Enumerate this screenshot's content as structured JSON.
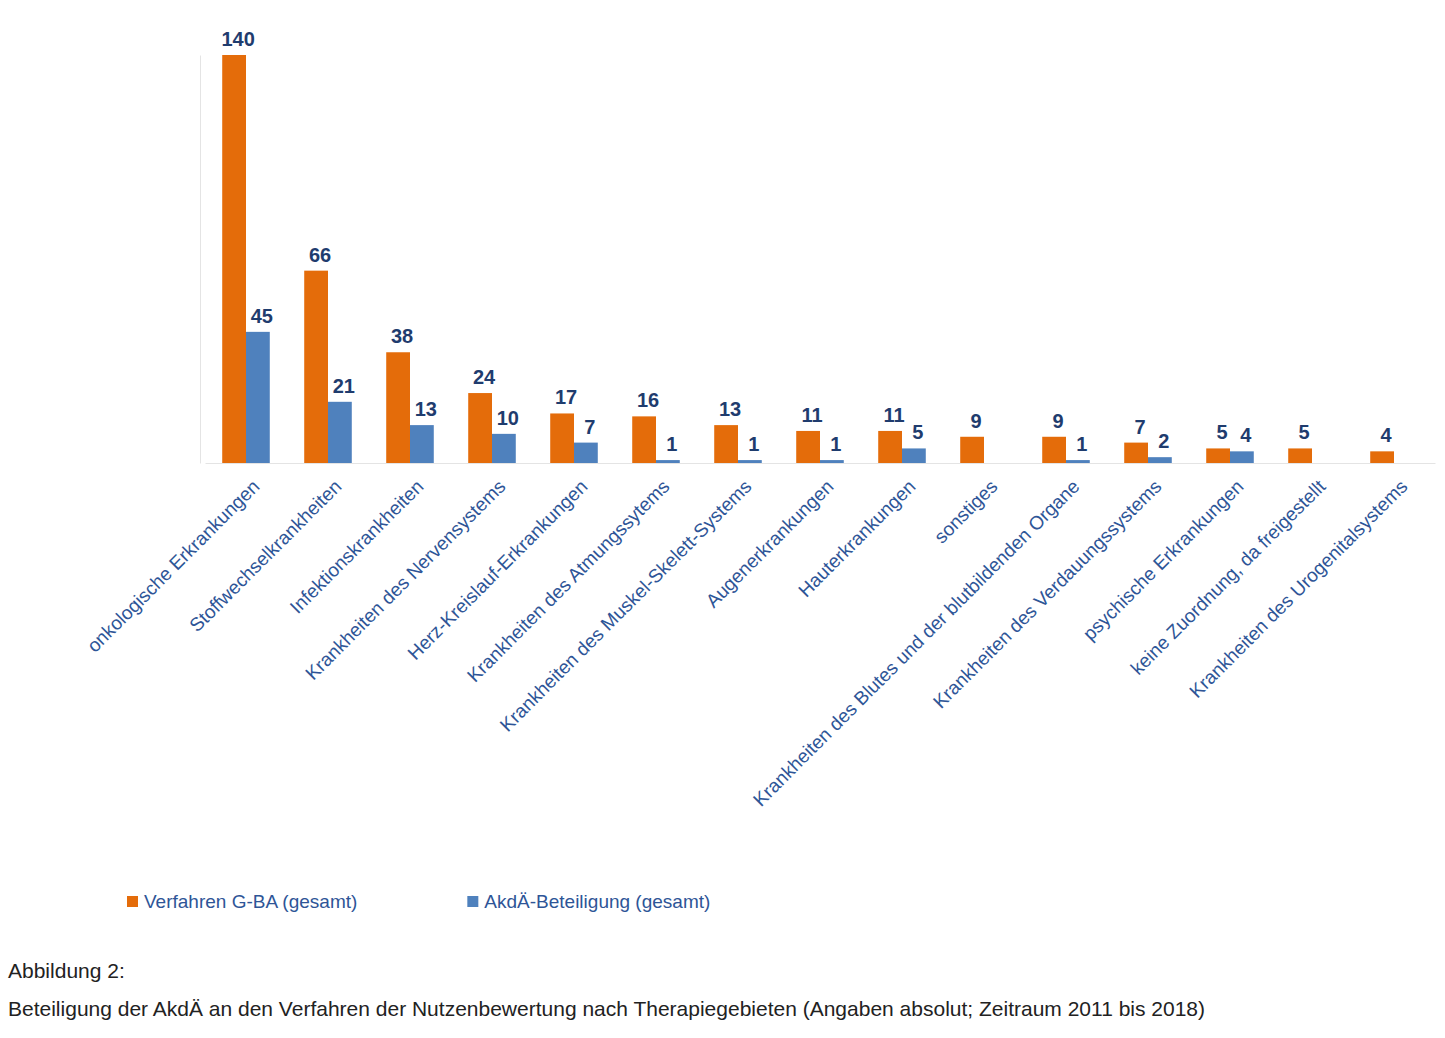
{
  "chart_data": {
    "type": "bar",
    "title": "Abbildung 2:",
    "subtitle": "Beteiligung der AkdÄ an den Verfahren der Nutzenbewertung nach Therapiegebieten (Angaben absolut; Zeitraum 2011 bis 2018)",
    "categories": [
      "onkologische Erkrankungen",
      "Stoffwechselkrankheiten",
      "Infektionskrankheiten",
      "Krankheiten des Nervensystems",
      "Herz-Kreislauf-Erkrankungen",
      "Krankheiten des Atmungssytems",
      "Krankheiten des Muskel-Skelett-Systems",
      "Augenerkrankungen",
      "Hauterkrankungen",
      "sonstiges",
      "Krankheiten des Blutes und der blutbildenden Organe",
      "Krankheiten des Verdauungssystems",
      "psychische Erkrankungen",
      "keine Zuordnung, da freigestellt",
      "Krankheiten des Urogenitalsystems"
    ],
    "series": [
      {
        "name": "Verfahren G-BA (gesamt)",
        "color": "#E46C0A",
        "values": [
          140,
          66,
          38,
          24,
          17,
          16,
          13,
          11,
          11,
          9,
          9,
          7,
          5,
          5,
          4
        ]
      },
      {
        "name": "AkdÄ-Beteiligung (gesamt)",
        "color": "#4F81BD",
        "values": [
          45,
          21,
          13,
          10,
          7,
          1,
          1,
          1,
          5,
          null,
          1,
          2,
          4,
          null,
          null
        ]
      }
    ],
    "ylim": [
      0,
      140
    ],
    "tick_labels": "x",
    "data_labels": true,
    "legend": "bottom-left",
    "grid": false
  }
}
